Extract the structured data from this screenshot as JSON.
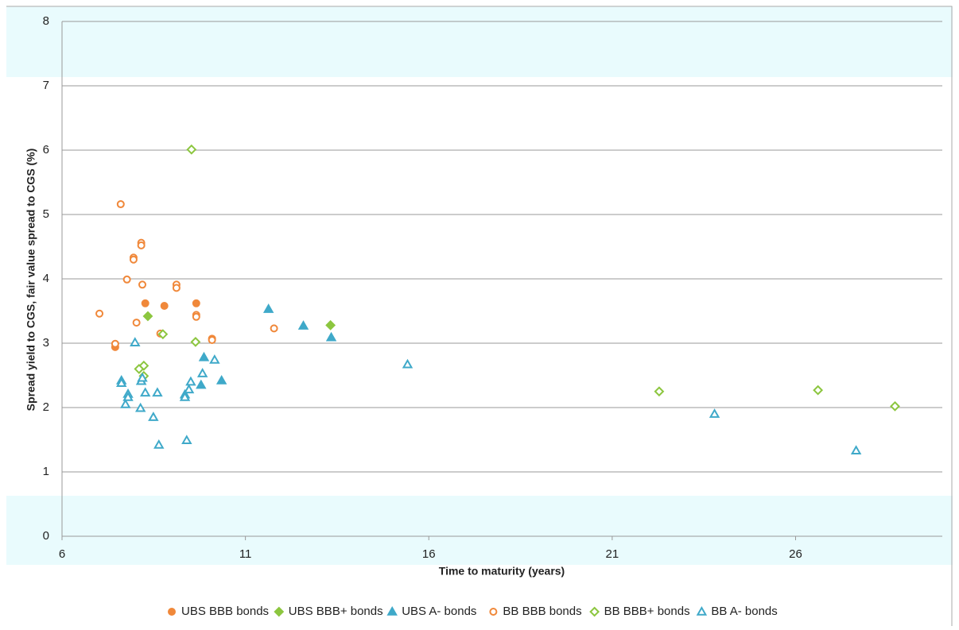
{
  "chart_data": {
    "type": "scatter",
    "x_label": "Time to maturity (years)",
    "y_label": "Spread yield to CGS, fair value spread to CGS (%)",
    "xlim": [
      6,
      30
    ],
    "xticks": [
      6,
      11,
      16,
      21,
      26
    ],
    "ylim": [
      0,
      8
    ],
    "yticks": [
      0,
      1,
      2,
      3,
      4,
      5,
      6,
      7,
      8
    ],
    "grid": true,
    "legend": "bottom",
    "series": [
      {
        "name": "UBS BBB bonds",
        "color": "#f0883a",
        "marker": "circle",
        "filled": true,
        "x": [
          8.27,
          8.79,
          9.66,
          7.45
        ],
        "y": [
          3.62,
          3.58,
          3.62,
          2.94
        ]
      },
      {
        "name": "UBS BBB+ bonds",
        "color": "#8cc63f",
        "marker": "diamond",
        "filled": true,
        "x": [
          8.34,
          13.32
        ],
        "y": [
          3.42,
          3.28
        ]
      },
      {
        "name": "UBS A- bonds",
        "color": "#3fa9c9",
        "marker": "triangle",
        "filled": true,
        "x": [
          11.63,
          12.58,
          13.34,
          9.87,
          9.79,
          10.35,
          7.62,
          8.16
        ],
        "y": [
          3.53,
          3.27,
          3.09,
          2.78,
          2.35,
          2.42,
          2.42,
          2.41
        ]
      },
      {
        "name": "BB BBB bonds",
        "color": "#f0883a",
        "marker": "circle",
        "filled": false,
        "x": [
          7.6,
          8.16,
          8.16,
          7.95,
          7.95,
          7.77,
          8.19,
          9.12,
          9.12,
          7.02,
          9.66,
          9.66,
          8.03,
          11.78,
          8.68,
          10.09,
          10.09,
          7.45
        ],
        "y": [
          5.16,
          4.56,
          4.52,
          4.33,
          4.3,
          3.99,
          3.91,
          3.91,
          3.86,
          3.46,
          3.44,
          3.41,
          3.32,
          3.23,
          3.15,
          3.07,
          3.05,
          2.99
        ]
      },
      {
        "name": "BB BBB+ bonds",
        "color": "#8cc63f",
        "marker": "diamond",
        "filled": false,
        "x": [
          9.53,
          8.75,
          9.64,
          8.23,
          8.1,
          8.23,
          22.28,
          26.61,
          28.71
        ],
        "y": [
          6.01,
          3.14,
          3.02,
          2.65,
          2.6,
          2.49,
          2.25,
          2.27,
          2.02
        ]
      },
      {
        "name": "BB A- bonds",
        "color": "#3fa9c9",
        "marker": "triangle",
        "filled": false,
        "x": [
          7.99,
          10.16,
          9.83,
          9.51,
          7.62,
          8.16,
          8.19,
          7.8,
          7.8,
          8.27,
          8.6,
          9.46,
          9.35,
          9.35,
          7.73,
          8.14,
          8.49,
          15.42,
          23.79,
          9.4,
          8.64,
          27.65
        ],
        "y": [
          3.01,
          2.74,
          2.53,
          2.4,
          2.38,
          2.41,
          2.46,
          2.21,
          2.16,
          2.23,
          2.23,
          2.28,
          2.2,
          2.16,
          2.05,
          1.99,
          1.85,
          2.67,
          1.9,
          1.49,
          1.42,
          1.33
        ]
      }
    ]
  }
}
